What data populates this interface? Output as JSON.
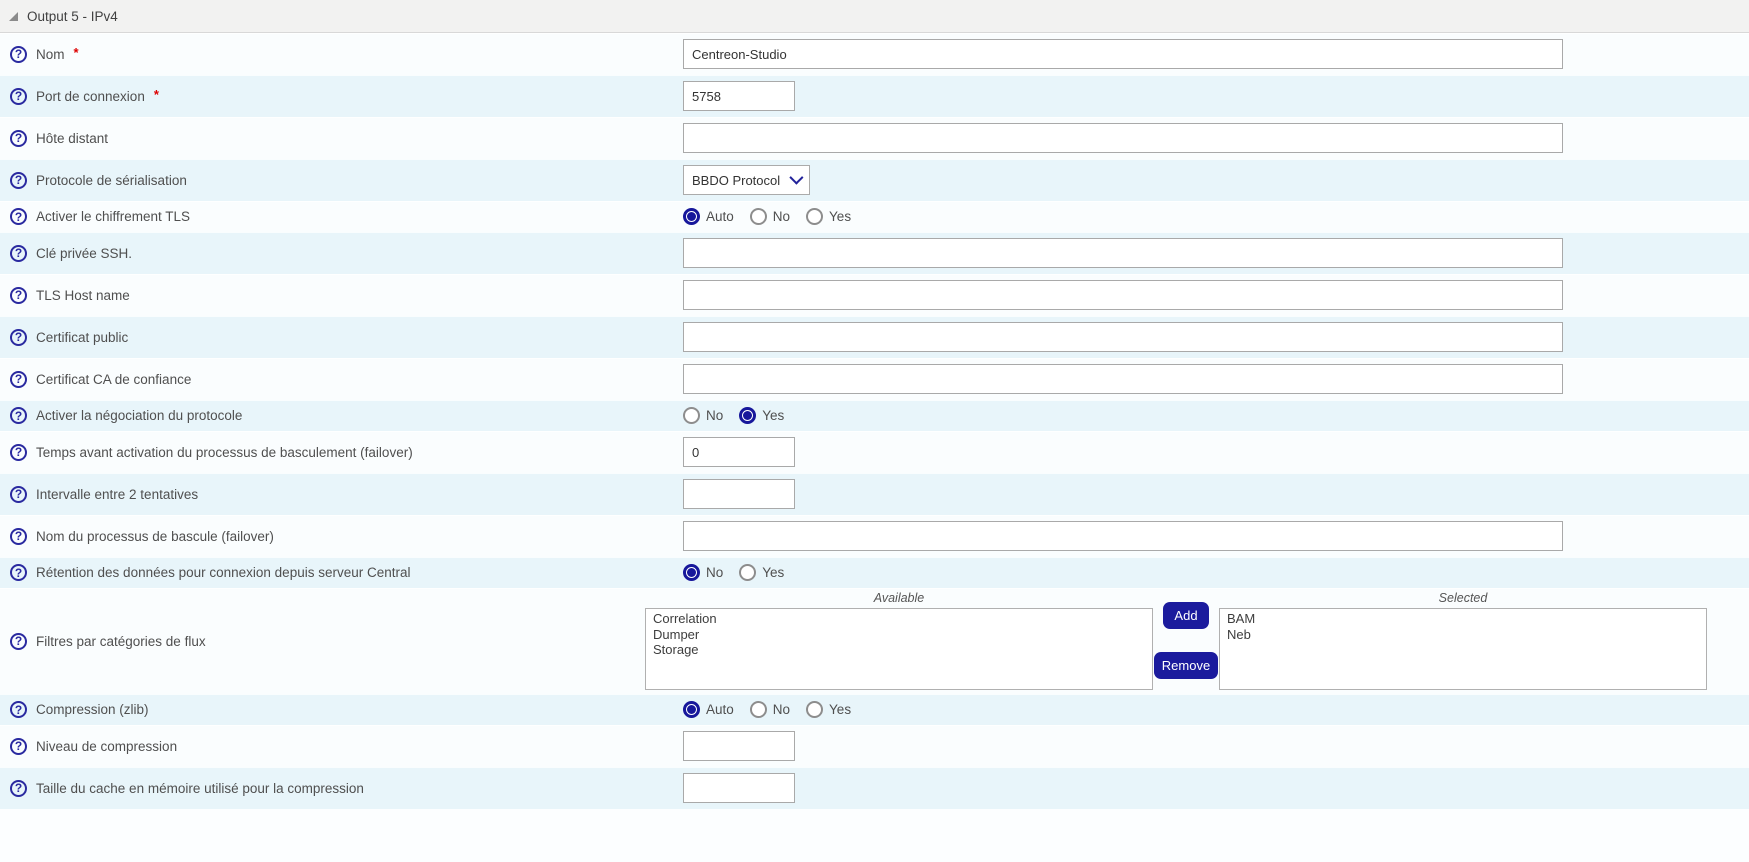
{
  "header": {
    "title": "Output 5 - IPv4"
  },
  "required_marker": "*",
  "rows": [
    {
      "name": "nom",
      "label": "Nom",
      "required": true,
      "type": "text",
      "value": "Centreon-Studio",
      "size": "wide"
    },
    {
      "name": "connection-port",
      "label": "Port de connexion",
      "required": true,
      "type": "text",
      "value": "5758",
      "size": "small"
    },
    {
      "name": "remote-host",
      "label": "Hôte distant",
      "required": false,
      "type": "text",
      "value": "",
      "size": "wide"
    },
    {
      "name": "serialization-protocol",
      "label": "Protocole de sérialisation",
      "required": false,
      "type": "select",
      "value": "BBDO Protocol"
    },
    {
      "name": "enable-tls-encryption",
      "label": "Activer le chiffrement TLS",
      "required": false,
      "type": "radio",
      "options": [
        {
          "label": "Auto",
          "selected": true
        },
        {
          "label": "No",
          "selected": false
        },
        {
          "label": "Yes",
          "selected": false
        }
      ]
    },
    {
      "name": "ssh-private-key",
      "label": "Clé privée SSH.",
      "required": false,
      "type": "text",
      "value": "",
      "size": "wide"
    },
    {
      "name": "tls-host-name",
      "label": "TLS Host name",
      "required": false,
      "type": "text",
      "value": "",
      "size": "wide"
    },
    {
      "name": "public-certificate",
      "label": "Certificat public",
      "required": false,
      "type": "text",
      "value": "",
      "size": "wide"
    },
    {
      "name": "trusted-ca-certificate",
      "label": "Certificat CA de confiance",
      "required": false,
      "type": "text",
      "value": "",
      "size": "wide"
    },
    {
      "name": "protocol-negotiation",
      "label": "Activer la négociation du protocole",
      "required": false,
      "type": "radio",
      "options": [
        {
          "label": "No",
          "selected": false
        },
        {
          "label": "Yes",
          "selected": true
        }
      ]
    },
    {
      "name": "failover-activation-time",
      "label": "Temps avant activation du processus de basculement (failover)",
      "required": false,
      "type": "text",
      "value": "0",
      "size": "small"
    },
    {
      "name": "retry-interval",
      "label": "Intervalle entre 2 tentatives",
      "required": false,
      "type": "text",
      "value": "",
      "size": "small"
    },
    {
      "name": "failover-process-name",
      "label": "Nom du processus de bascule (failover)",
      "required": false,
      "type": "text",
      "value": "",
      "size": "wide"
    },
    {
      "name": "central-data-retention",
      "label": "Rétention des données pour connexion depuis serveur Central",
      "required": false,
      "type": "radio",
      "options": [
        {
          "label": "No",
          "selected": true
        },
        {
          "label": "Yes",
          "selected": false
        }
      ]
    },
    {
      "name": "stream-category-filters",
      "label": "Filtres par catégories de flux",
      "required": false,
      "type": "duallist",
      "dual": {
        "available_label": "Available",
        "selected_label": "Selected",
        "add_label": "Add",
        "remove_label": "Remove",
        "available_items": [
          "Correlation",
          "Dumper",
          "Storage"
        ],
        "selected_items": [
          "BAM",
          "Neb"
        ]
      }
    },
    {
      "name": "compression-zlib",
      "label": "Compression (zlib)",
      "required": false,
      "type": "radio",
      "options": [
        {
          "label": "Auto",
          "selected": true
        },
        {
          "label": "No",
          "selected": false
        },
        {
          "label": "Yes",
          "selected": false
        }
      ]
    },
    {
      "name": "compression-level",
      "label": "Niveau de compression",
      "required": false,
      "type": "text",
      "value": "",
      "size": "small"
    },
    {
      "name": "compression-memory-cache-size",
      "label": "Taille du cache en mémoire utilisé pour la compression",
      "required": false,
      "type": "text",
      "value": "",
      "size": "small"
    }
  ]
}
